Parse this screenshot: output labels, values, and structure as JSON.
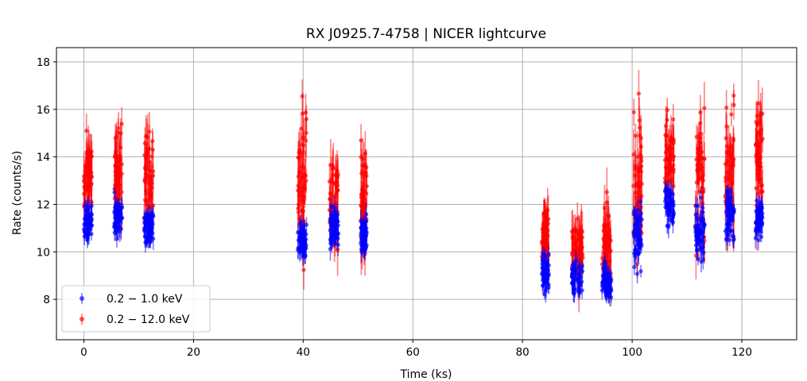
{
  "chart_data": {
    "type": "scatter",
    "title": "RX J0925.7-4758 | NICER lightcurve",
    "xlabel": "Time (ks)",
    "ylabel": "Rate (counts/s)",
    "xlim": [
      -5,
      130
    ],
    "ylim": [
      6.3,
      18.6
    ],
    "xticks": [
      0,
      20,
      40,
      60,
      80,
      100,
      120
    ],
    "yticks": [
      8,
      10,
      12,
      14,
      16,
      18
    ],
    "grid": true,
    "legend_position": "lower left",
    "series": [
      {
        "name": "0.2 − 1.0 keV",
        "color": "#0000ff",
        "error_bars": true,
        "segments": [
          {
            "x_start": 0.0,
            "x_end": 1.5,
            "y_mean": 11.3,
            "y_spread": 0.5,
            "err": 0.35
          },
          {
            "x_start": 5.5,
            "x_end": 7.0,
            "y_mean": 11.5,
            "y_spread": 0.6,
            "err": 0.35
          },
          {
            "x_start": 11.0,
            "x_end": 12.7,
            "y_mean": 11.0,
            "y_spread": 0.6,
            "err": 0.35
          },
          {
            "x_start": 39.0,
            "x_end": 40.6,
            "y_mean": 10.4,
            "y_spread": 0.6,
            "err": 0.35
          },
          {
            "x_start": 44.8,
            "x_end": 46.4,
            "y_mean": 11.0,
            "y_spread": 0.6,
            "err": 0.35
          },
          {
            "x_start": 50.5,
            "x_end": 51.6,
            "y_mean": 10.6,
            "y_spread": 0.6,
            "err": 0.35
          },
          {
            "x_start": 83.5,
            "x_end": 84.8,
            "y_mean": 9.1,
            "y_spread": 0.5,
            "err": 0.35
          },
          {
            "x_start": 89.0,
            "x_end": 91.0,
            "y_mean": 8.9,
            "y_spread": 0.5,
            "err": 0.35
          },
          {
            "x_start": 94.5,
            "x_end": 96.2,
            "y_mean": 8.7,
            "y_spread": 0.5,
            "err": 0.35
          },
          {
            "x_start": 100.2,
            "x_end": 101.8,
            "y_mean": 10.8,
            "y_spread": 1.0,
            "err": 0.35
          },
          {
            "x_start": 106.0,
            "x_end": 107.6,
            "y_mean": 11.9,
            "y_spread": 0.6,
            "err": 0.35
          },
          {
            "x_start": 111.5,
            "x_end": 113.2,
            "y_mean": 10.8,
            "y_spread": 0.9,
            "err": 0.35
          },
          {
            "x_start": 117.0,
            "x_end": 118.6,
            "y_mean": 11.6,
            "y_spread": 0.9,
            "err": 0.35
          },
          {
            "x_start": 122.5,
            "x_end": 123.8,
            "y_mean": 11.4,
            "y_spread": 0.6,
            "err": 0.35
          }
        ]
      },
      {
        "name": "0.2 − 12.0 keV",
        "color": "#ff0000",
        "error_bars": true,
        "segments": [
          {
            "x_start": 0.0,
            "x_end": 1.5,
            "y_mean": 13.3,
            "y_spread": 1.0,
            "err": 0.8
          },
          {
            "x_start": 5.5,
            "x_end": 7.0,
            "y_mean": 13.5,
            "y_spread": 1.4,
            "err": 0.8
          },
          {
            "x_start": 11.0,
            "x_end": 12.7,
            "y_mean": 13.0,
            "y_spread": 1.4,
            "err": 0.8
          },
          {
            "x_start": 39.0,
            "x_end": 40.6,
            "y_mean": 13.0,
            "y_spread": 2.1,
            "err": 0.8
          },
          {
            "x_start": 44.8,
            "x_end": 46.4,
            "y_mean": 12.3,
            "y_spread": 1.3,
            "err": 0.8
          },
          {
            "x_start": 50.5,
            "x_end": 51.6,
            "y_mean": 12.0,
            "y_spread": 1.5,
            "err": 0.8
          },
          {
            "x_start": 83.5,
            "x_end": 84.8,
            "y_mean": 10.8,
            "y_spread": 1.1,
            "err": 0.8
          },
          {
            "x_start": 89.0,
            "x_end": 91.0,
            "y_mean": 10.2,
            "y_spread": 1.1,
            "err": 0.8
          },
          {
            "x_start": 94.5,
            "x_end": 96.2,
            "y_mean": 10.3,
            "y_spread": 1.5,
            "err": 0.8
          },
          {
            "x_start": 100.2,
            "x_end": 101.8,
            "y_mean": 13.0,
            "y_spread": 2.3,
            "err": 0.8
          },
          {
            "x_start": 106.0,
            "x_end": 107.6,
            "y_mean": 14.0,
            "y_spread": 1.5,
            "err": 0.8
          },
          {
            "x_start": 111.5,
            "x_end": 113.2,
            "y_mean": 12.8,
            "y_spread": 2.0,
            "err": 0.8
          },
          {
            "x_start": 117.0,
            "x_end": 118.6,
            "y_mean": 13.5,
            "y_spread": 2.0,
            "err": 0.8
          },
          {
            "x_start": 122.5,
            "x_end": 123.8,
            "y_mean": 13.8,
            "y_spread": 2.0,
            "err": 0.8
          }
        ]
      }
    ]
  }
}
